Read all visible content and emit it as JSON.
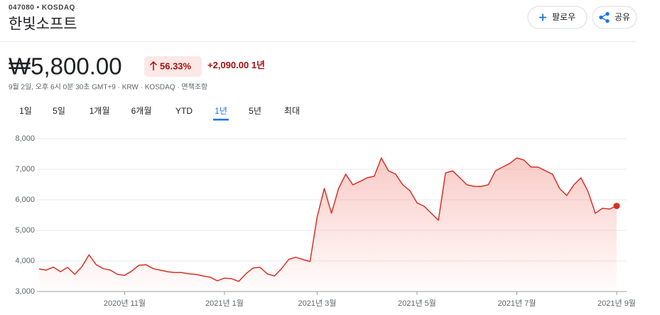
{
  "header": {
    "ticker_line": "047080 • KOSDAQ",
    "name": "한빛소프트"
  },
  "buttons": [
    "팔로우",
    "공유"
  ],
  "quote": {
    "price": "₩5,800.00",
    "change_pct": "56.33%",
    "change_abs": "+2,090.00",
    "period": "1년",
    "info": "9월 2일, 오후 6시 0분 30초 GMT+9 · KRW · KOSDAQ · 면책조항"
  },
  "tabs": [
    "1일",
    "5일",
    "1개월",
    "6개월",
    "YTD",
    "1년",
    "5년",
    "최대"
  ],
  "selected_tab": 5,
  "chart_data": {
    "type": "line",
    "color": "#d93025",
    "grid": true,
    "categories": [
      null,
      null,
      null,
      null,
      null,
      null,
      null,
      null,
      null,
      null,
      null,
      null,
      "2020년 11월",
      null,
      null,
      null,
      null,
      null,
      null,
      null,
      null,
      null,
      null,
      null,
      null,
      null,
      "2021년 1월",
      null,
      null,
      null,
      null,
      null,
      null,
      null,
      null,
      null,
      null,
      null,
      null,
      "2021년 3월",
      null,
      null,
      null,
      null,
      null,
      null,
      null,
      null,
      null,
      null,
      null,
      null,
      null,
      "2021년 5월",
      null,
      null,
      null,
      null,
      null,
      null,
      null,
      null,
      null,
      null,
      null,
      null,
      null,
      "2021년 7월",
      null,
      null,
      null,
      null,
      null,
      null,
      null,
      null,
      null,
      null,
      null,
      null,
      null,
      "2021년 9월"
    ],
    "values": [
      3740,
      3700,
      3800,
      3650,
      3790,
      3560,
      3810,
      4200,
      3880,
      3750,
      3700,
      3560,
      3530,
      3670,
      3860,
      3880,
      3750,
      3700,
      3650,
      3620,
      3620,
      3580,
      3560,
      3510,
      3470,
      3350,
      3440,
      3420,
      3330,
      3580,
      3770,
      3790,
      3580,
      3510,
      3750,
      4050,
      4120,
      4050,
      3980,
      5440,
      6370,
      5560,
      6370,
      6840,
      6490,
      6600,
      6720,
      6770,
      7370,
      6950,
      6840,
      6490,
      6300,
      5900,
      5790,
      5560,
      5330,
      6880,
      6950,
      6720,
      6490,
      6440,
      6440,
      6490,
      6950,
      7070,
      7190,
      7370,
      7300,
      7070,
      7070,
      6950,
      6840,
      6370,
      6140,
      6490,
      6720,
      6260,
      5560,
      5720,
      5700,
      5800
    ],
    "ylim": [
      3000,
      8000
    ],
    "yticks": [
      {
        "value": 3000,
        "label": "3,000"
      },
      {
        "value": 4000,
        "label": "4,000"
      },
      {
        "value": 5000,
        "label": "5,000"
      },
      {
        "value": 6000,
        "label": "6,000"
      },
      {
        "value": 7000,
        "label": "7,000"
      },
      {
        "value": 8000,
        "label": "8,000"
      }
    ]
  }
}
